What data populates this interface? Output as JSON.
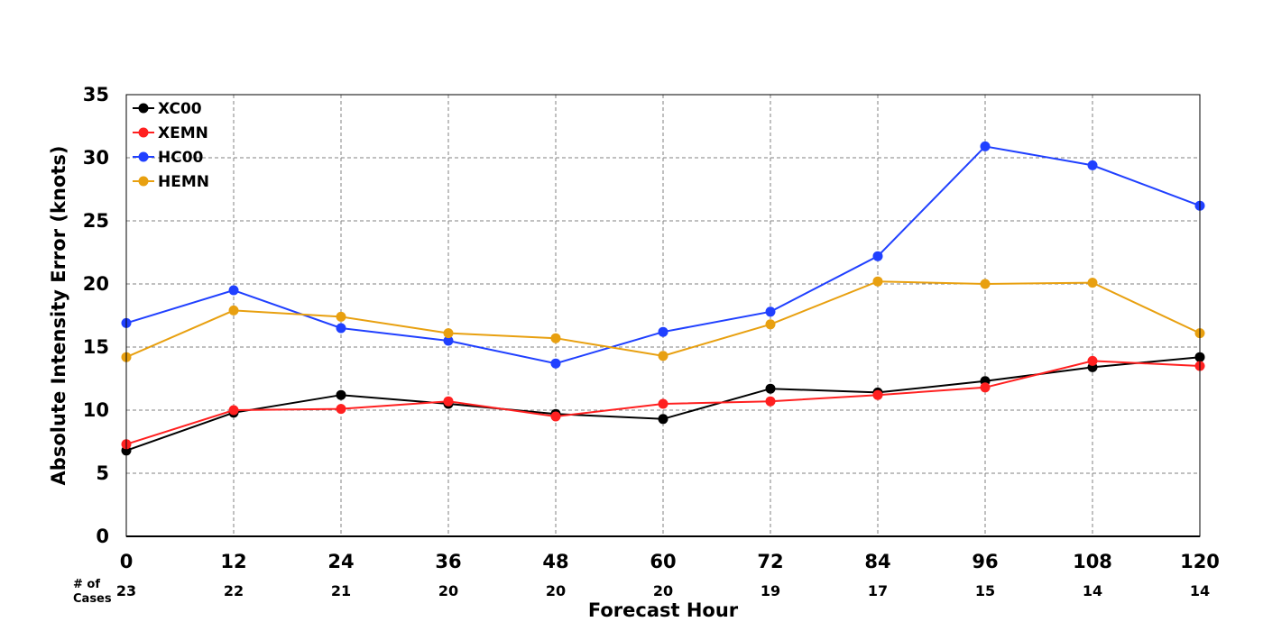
{
  "chart_data": {
    "type": "line",
    "xlabel": "Forecast Hour",
    "ylabel": "Absolute Intensity Error (knots)",
    "x": [
      0,
      12,
      24,
      36,
      48,
      60,
      72,
      84,
      96,
      108,
      120
    ],
    "x_ticks": [
      "0",
      "12",
      "24",
      "36",
      "48",
      "60",
      "72",
      "84",
      "96",
      "108",
      "120"
    ],
    "y_ticks": [
      "0",
      "5",
      "10",
      "15",
      "20",
      "25",
      "30",
      "35"
    ],
    "xlim": [
      0,
      120
    ],
    "ylim": [
      0,
      35
    ],
    "grid": true,
    "legend_position": "top-left",
    "cases_header_line1": "# of",
    "cases_header_line2": "Cases",
    "cases": [
      "23",
      "22",
      "21",
      "20",
      "20",
      "20",
      "19",
      "17",
      "15",
      "14",
      "14"
    ],
    "series": [
      {
        "name": "XC00",
        "color": "#000000",
        "values": [
          6.8,
          9.8,
          11.2,
          10.5,
          9.7,
          9.3,
          11.7,
          11.4,
          12.3,
          13.4,
          14.2
        ]
      },
      {
        "name": "XEMN",
        "color": "#ff2020",
        "values": [
          7.3,
          10.0,
          10.1,
          10.7,
          9.5,
          10.5,
          10.7,
          11.2,
          11.8,
          13.9,
          13.5
        ]
      },
      {
        "name": "HC00",
        "color": "#2040ff",
        "values": [
          16.9,
          19.5,
          16.5,
          15.5,
          13.7,
          16.2,
          17.8,
          22.2,
          30.9,
          29.4,
          26.2
        ]
      },
      {
        "name": "HEMN",
        "color": "#e8a010",
        "values": [
          14.2,
          17.9,
          17.4,
          16.1,
          15.7,
          14.3,
          16.8,
          20.2,
          20.0,
          20.1,
          16.1
        ]
      }
    ]
  }
}
